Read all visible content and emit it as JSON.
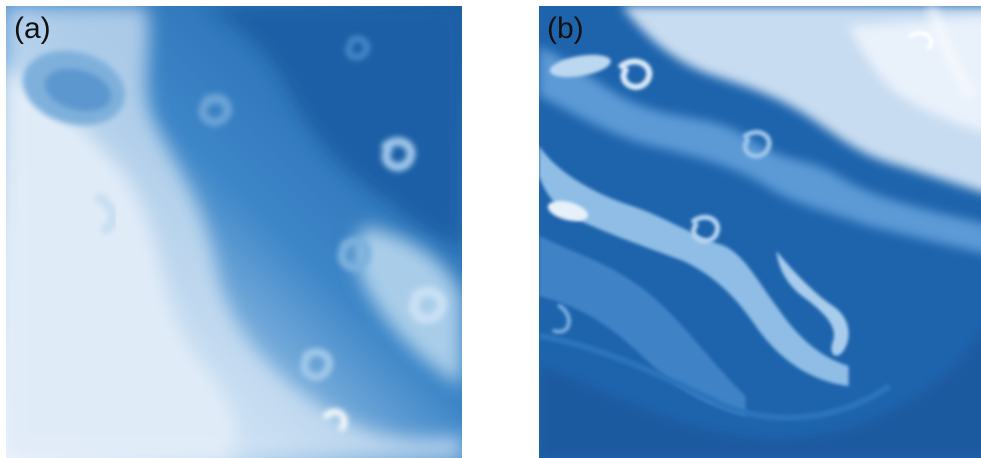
{
  "panels": [
    {
      "label": "(a)"
    },
    {
      "label": "(b)"
    }
  ],
  "colors": {
    "deep_blue": "#1b5fa6",
    "mid_blue": "#3d86c8",
    "light_blue": "#a9cde9",
    "pale": "#eef3fc"
  }
}
